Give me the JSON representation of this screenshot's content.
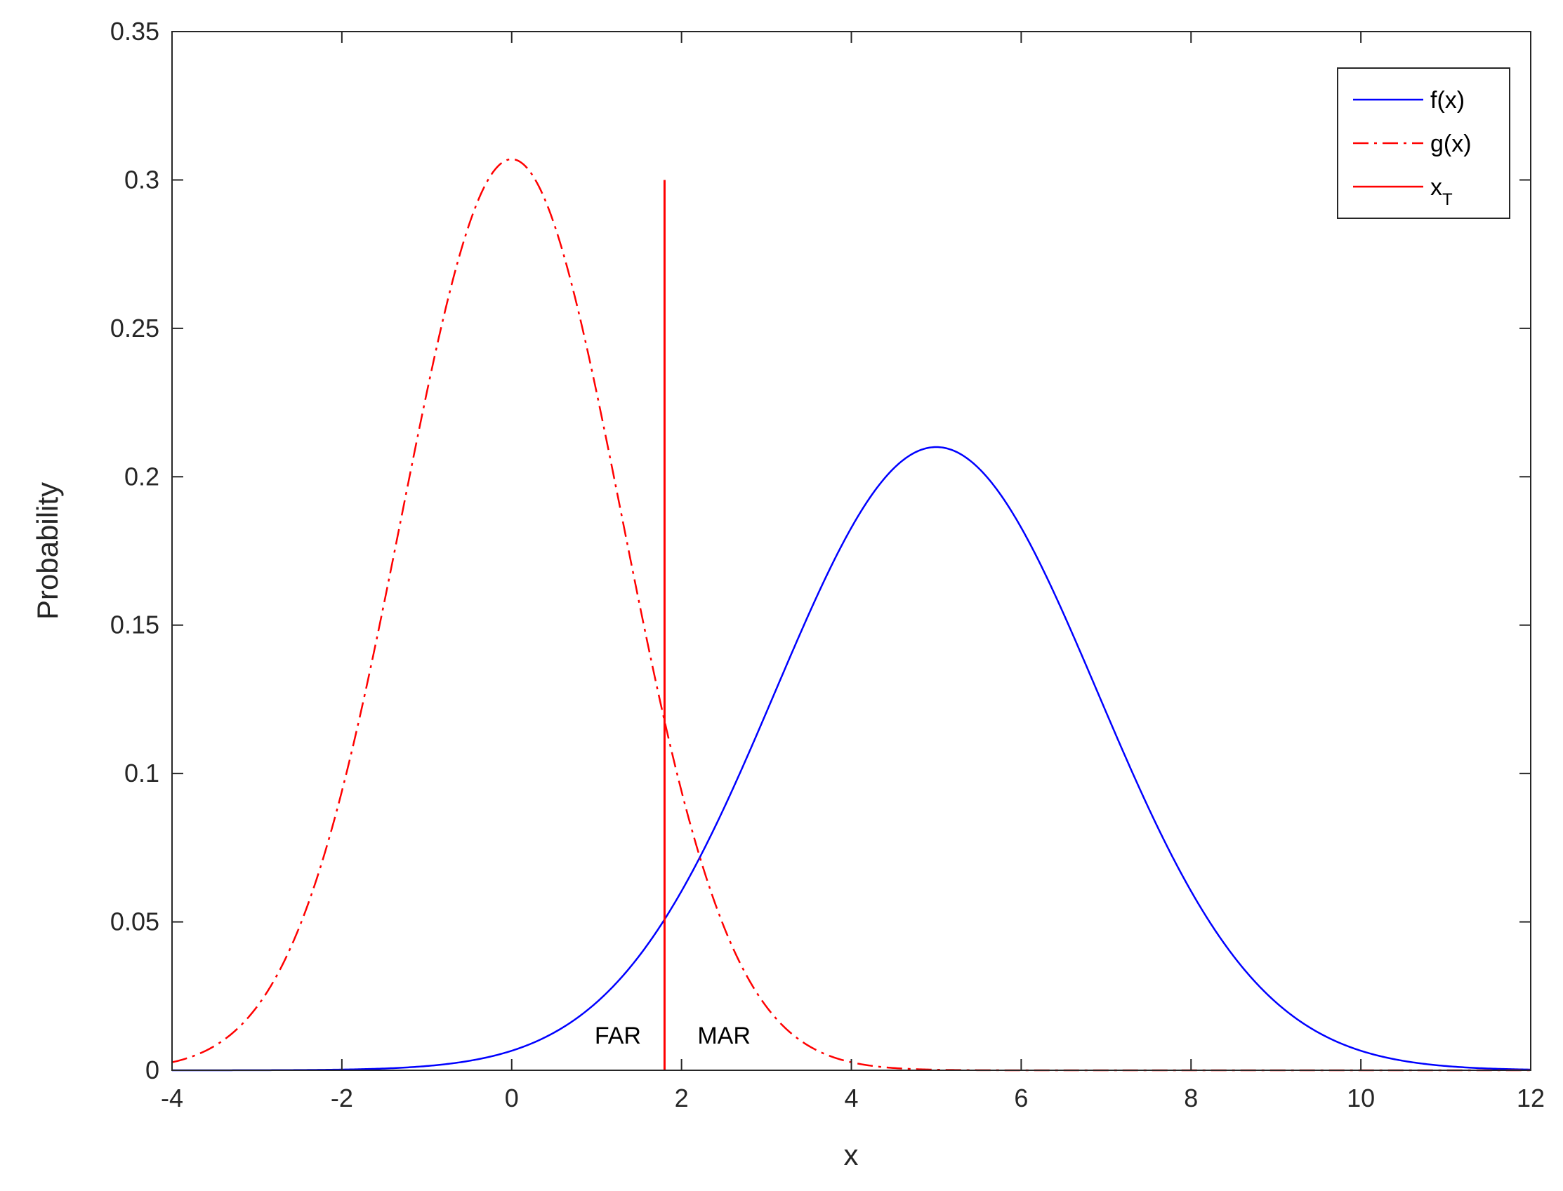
{
  "chart_data": {
    "type": "line",
    "title": "",
    "xlabel": "x",
    "ylabel": "Probability",
    "xlim": [
      -4,
      12
    ],
    "ylim": [
      0,
      0.35
    ],
    "xticks": [
      -4,
      -2,
      0,
      2,
      4,
      6,
      8,
      10,
      12
    ],
    "yticks": [
      0,
      0.05,
      0.1,
      0.15,
      0.2,
      0.25,
      0.3,
      0.35
    ],
    "ytick_labels": [
      "0",
      "0.05",
      "0.1",
      "0.15",
      "0.2",
      "0.25",
      "0.3",
      "0.35"
    ],
    "grid": false,
    "legend_position": "top-right",
    "series": [
      {
        "name": "f(x)",
        "style": "solid",
        "color": "#0000FF",
        "distribution": {
          "mean": 5,
          "sd": 1.9,
          "peak": 0.21
        }
      },
      {
        "name": "g(x)",
        "style": "dash-dot",
        "color": "#FF0000",
        "distribution": {
          "mean": 0,
          "sd": 1.3,
          "peak": 0.307
        }
      }
    ],
    "threshold": {
      "name": "x",
      "name_subscript": "T",
      "x": 1.8,
      "y_top": 0.3,
      "color": "#FF0000",
      "style": "solid"
    },
    "annotations": [
      {
        "text": "FAR",
        "x": 1.25,
        "y": 0.009
      },
      {
        "text": "MAR",
        "x": 2.5,
        "y": 0.009
      }
    ]
  }
}
